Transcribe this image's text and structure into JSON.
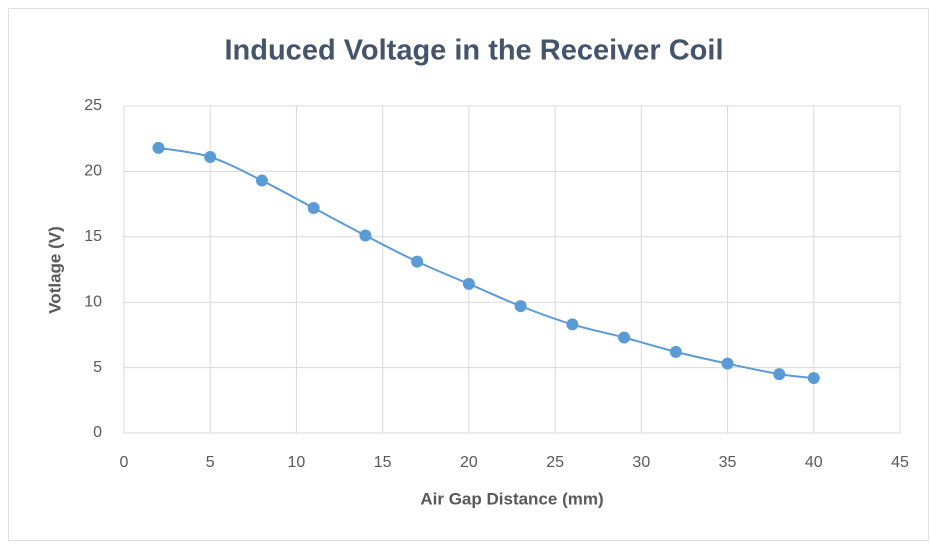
{
  "chart_data": {
    "type": "scatter",
    "smooth_line": true,
    "title": "Induced Voltage in the Receiver Coil",
    "xlabel": "Air Gap Distance (mm)",
    "ylabel": "Votlage (V)",
    "x": [
      2,
      5,
      8,
      11,
      14,
      17,
      20,
      23,
      26,
      29,
      32,
      35,
      38,
      40
    ],
    "values": [
      21.8,
      21.1,
      19.3,
      17.2,
      15.1,
      13.1,
      11.4,
      9.7,
      8.3,
      7.3,
      6.2,
      5.3,
      4.5,
      4.2
    ],
    "color": "#5b9bd5",
    "xlim": [
      0,
      45
    ],
    "xticks": [
      0,
      5,
      10,
      15,
      20,
      25,
      30,
      35,
      40,
      45
    ],
    "ylim": [
      0,
      25
    ],
    "yticks": [
      0,
      5,
      10,
      15,
      20,
      25
    ],
    "grid": true
  }
}
